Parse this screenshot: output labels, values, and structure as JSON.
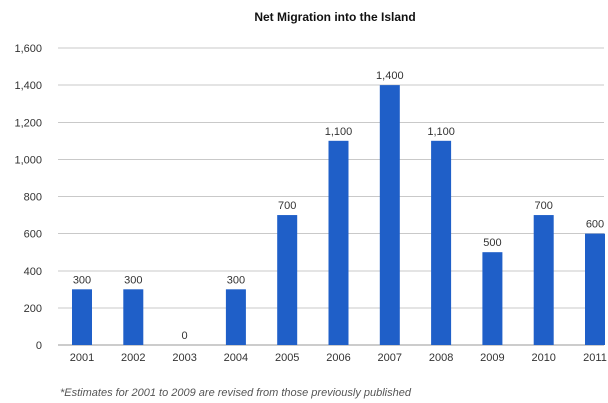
{
  "chart_data": {
    "type": "bar",
    "title": "Net Migration into the Island",
    "xlabel": "",
    "ylabel": "",
    "categories": [
      "2001",
      "2002",
      "2003",
      "2004",
      "2005",
      "2006",
      "2007",
      "2008",
      "2009",
      "2010",
      "2011"
    ],
    "values": [
      300,
      300,
      0,
      300,
      700,
      1100,
      1400,
      1100,
      500,
      700,
      600
    ],
    "data_labels": [
      "300",
      "300",
      "0",
      "300",
      "700",
      "1,100",
      "1,400",
      "1,100",
      "500",
      "700",
      "600"
    ],
    "y_ticks": [
      0,
      200,
      400,
      600,
      800,
      1000,
      1200,
      1400,
      1600
    ],
    "y_tick_labels": [
      "0",
      "200",
      "400",
      "600",
      "800",
      "1,000",
      "1,200",
      "1,400",
      "1,600"
    ],
    "ylim": [
      0,
      1600
    ],
    "grid": true,
    "legend": "none",
    "bar_color": "#1f5fc8"
  },
  "footnote": "*Estimates for 2001 to 2009 are revised from those previously published"
}
